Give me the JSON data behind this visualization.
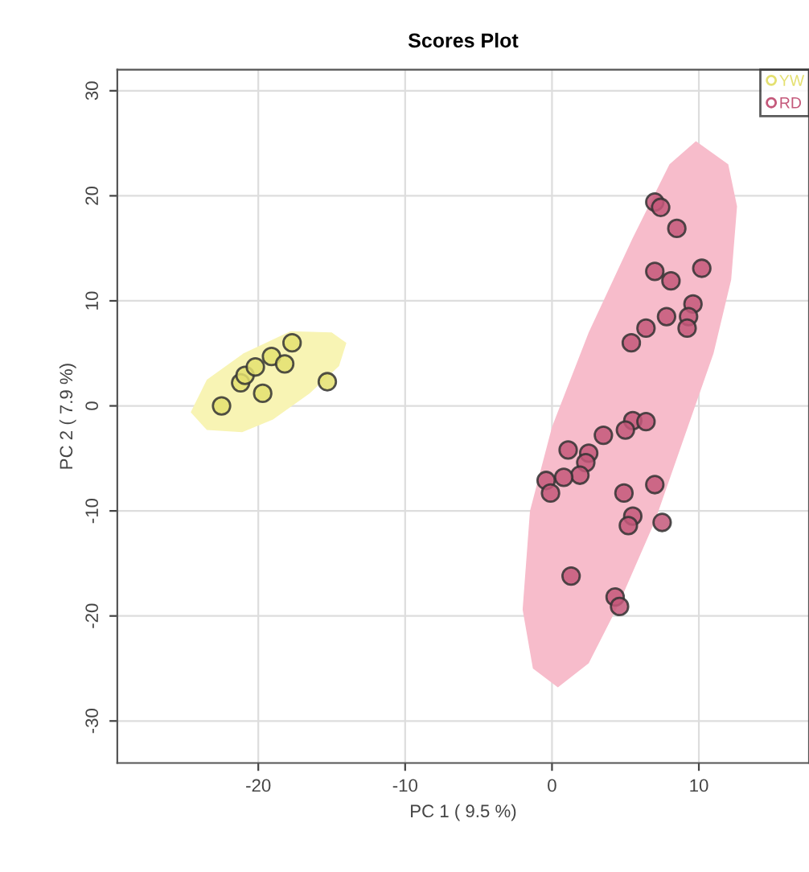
{
  "chart_data": {
    "type": "scatter",
    "title": "Scores Plot",
    "xlabel": "PC 1 ( 9.5 %)",
    "ylabel": "PC 2 ( 7.9 %)",
    "xlim": [
      -29.6,
      17.5
    ],
    "ylim": [
      -34,
      32
    ],
    "xticks": [
      -20,
      -10,
      0,
      10
    ],
    "yticks": [
      -30,
      -20,
      -10,
      0,
      10,
      20,
      30
    ],
    "grid": true,
    "legend": "top right",
    "series": [
      {
        "type": "area",
        "color": "#f8f4b4",
        "x": [
          -24.6,
          -23.5,
          -21,
          -17.8,
          -15,
          -14,
          -14.5,
          -16.5,
          -19,
          -21.1,
          -23.5,
          -24.6
        ],
        "values": [
          -0.6,
          2.5,
          5,
          7.1,
          7,
          6,
          3.8,
          1.2,
          -1.3,
          -2.5,
          -2.3,
          -0.6
        ]
      },
      {
        "type": "area",
        "color": "#f7bccb",
        "x": [
          9.8,
          12,
          12.6,
          12.2,
          11,
          9,
          7,
          4.5,
          2.5,
          0.4,
          -1.3,
          -2,
          -1.5,
          0,
          2.5,
          5.5,
          8,
          9.8
        ],
        "values": [
          25.2,
          23,
          19,
          12,
          5,
          -3,
          -11,
          -19,
          -24.5,
          -26.8,
          -25,
          -19.4,
          -10,
          -2,
          7,
          16,
          23,
          25.2
        ]
      },
      {
        "name": "YW",
        "color": "#e4e070",
        "marker": "circle",
        "x": [
          -22.5,
          -21.2,
          -20.9,
          -20.2,
          -19.7,
          -19.1,
          -18.2,
          -17.7,
          -15.3
        ],
        "values": [
          0,
          2.2,
          2.9,
          3.7,
          1.2,
          4.7,
          4,
          6,
          2.3
        ]
      },
      {
        "name": "RD",
        "color": "#c4587a",
        "marker": "circle",
        "x": [
          7.0,
          7.4,
          8.5,
          7.0,
          8.1,
          10.2,
          9.6,
          9.3,
          9.2,
          7.8,
          6.4,
          5.4,
          5.5,
          6.4,
          5.0,
          3.5,
          1.1,
          2.5,
          2.3,
          1.9,
          0.8,
          -0.4,
          -0.1,
          4.9,
          7.0,
          5.5,
          5.2,
          7.5,
          1.3,
          4.3,
          4.6
        ],
        "values": [
          19.4,
          18.9,
          16.9,
          12.8,
          11.9,
          13.1,
          9.7,
          8.5,
          7.4,
          8.5,
          7.4,
          6.0,
          -1.4,
          -1.5,
          -2.3,
          -2.8,
          -4.2,
          -4.5,
          -5.4,
          -6.6,
          -6.8,
          -7.1,
          -8.3,
          -8.3,
          -7.5,
          -10.5,
          -11.4,
          -11.1,
          -16.2,
          -18.2,
          -19.1
        ]
      }
    ]
  }
}
